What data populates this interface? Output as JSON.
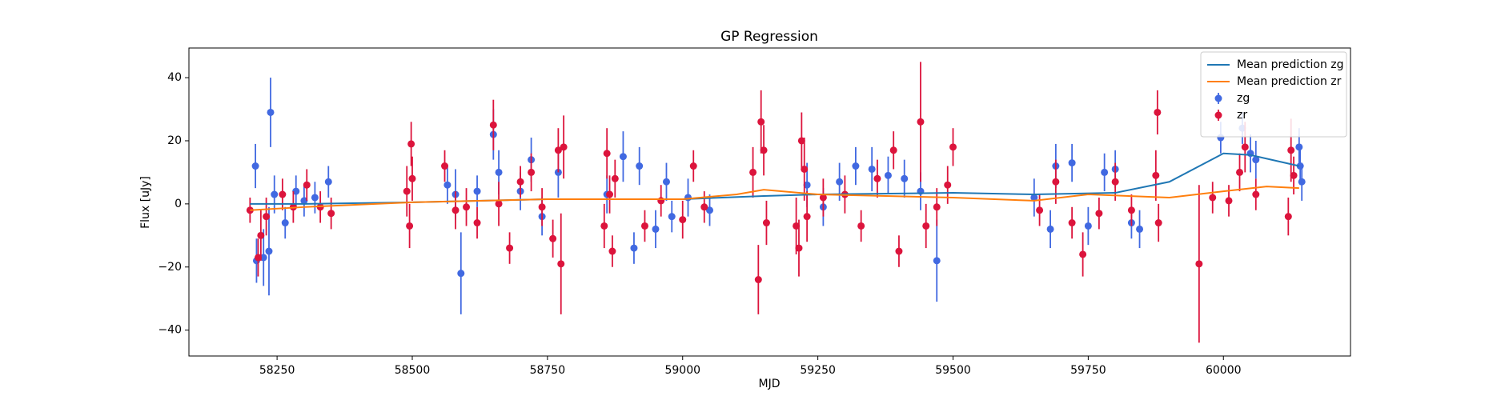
{
  "chart_data": {
    "type": "errorbar",
    "title": "GP Regression",
    "x_label": "MJD",
    "y_label": "Flux [uJy]",
    "xlim": [
      58087,
      60235
    ],
    "ylim": [
      -48.2,
      49.4
    ],
    "xticks": [
      58250,
      58500,
      58750,
      59000,
      59250,
      59500,
      59750,
      60000
    ],
    "yticks": [
      {
        "value": -40,
        "label": "−40"
      },
      {
        "value": -20,
        "label": "−20"
      },
      0,
      20,
      40
    ],
    "legend": "upper right",
    "series": [
      {
        "name": "Mean prediction zg",
        "kind": "line",
        "color": "#1f77b4",
        "x": [
          58200,
          58300,
          58500,
          58750,
          59000,
          59150,
          59250,
          59500,
          59650,
          59800,
          59900,
          60000,
          60050,
          60140
        ],
        "values": [
          0,
          0,
          0.5,
          1.5,
          1.5,
          2.5,
          3,
          3.5,
          3,
          3.5,
          7,
          16,
          15.5,
          12
        ]
      },
      {
        "name": "Mean prediction zr",
        "kind": "line",
        "color": "#ff7f0e",
        "x": [
          58200,
          58300,
          58500,
          58750,
          59000,
          59100,
          59150,
          59250,
          59500,
          59650,
          59750,
          59900,
          60000,
          60080,
          60140
        ],
        "values": [
          -2,
          -1,
          0.5,
          1.5,
          1.5,
          3,
          4.5,
          3,
          2,
          1,
          3,
          2,
          4,
          5.5,
          5
        ]
      },
      {
        "name": "zg",
        "kind": "errorbar",
        "color": "#4169e1",
        "x": [
          58210,
          58212,
          58225,
          58235,
          58238,
          58245,
          58265,
          58285,
          58300,
          58320,
          58345,
          58565,
          58580,
          58590,
          58620,
          58650,
          58660,
          58700,
          58720,
          58740,
          58770,
          58860,
          58890,
          58910,
          58920,
          58950,
          58970,
          58980,
          59010,
          59050,
          59230,
          59260,
          59290,
          59320,
          59350,
          59380,
          59410,
          59440,
          59470,
          59650,
          59680,
          59690,
          59720,
          59750,
          59780,
          59800,
          59830,
          59845,
          59995,
          60035,
          60050,
          60060,
          60140,
          60142,
          60145
        ],
        "values": [
          12,
          -18,
          -17,
          -15,
          29,
          3,
          -6,
          4,
          1,
          2,
          7,
          6,
          3,
          -22,
          4,
          22,
          10,
          4,
          14,
          -4,
          10,
          3,
          15,
          -14,
          12,
          -8,
          7,
          -4,
          2,
          -2,
          6,
          -1,
          7,
          12,
          11,
          9,
          8,
          4,
          -18,
          2,
          -8,
          12,
          13,
          -7,
          10,
          11,
          -6,
          -8,
          21,
          24,
          16,
          14,
          18,
          12,
          7
        ],
        "errors": [
          7,
          7,
          9,
          14,
          11,
          6,
          5,
          5,
          5,
          5,
          5,
          6,
          8,
          13,
          5,
          8,
          7,
          6,
          7,
          6,
          8,
          6,
          8,
          5,
          6,
          6,
          6,
          5,
          6,
          5,
          7,
          6,
          6,
          6,
          7,
          6,
          6,
          6,
          13,
          6,
          6,
          7,
          6,
          6,
          6,
          6,
          5,
          6,
          5,
          5,
          6,
          6,
          6,
          6,
          6
        ]
      },
      {
        "name": "zr",
        "kind": "errorbar",
        "color": "#dc143c",
        "x": [
          58200,
          58215,
          58220,
          58230,
          58260,
          58280,
          58305,
          58330,
          58350,
          58490,
          58495,
          58498,
          58500,
          58560,
          58580,
          58600,
          58620,
          58650,
          58660,
          58680,
          58700,
          58720,
          58740,
          58760,
          58770,
          58775,
          58780,
          58855,
          58860,
          58865,
          58870,
          58875,
          58930,
          58960,
          59000,
          59020,
          59040,
          59130,
          59140,
          59145,
          59150,
          59155,
          59210,
          59215,
          59220,
          59225,
          59230,
          59260,
          59300,
          59330,
          59360,
          59390,
          59400,
          59440,
          59450,
          59470,
          59490,
          59500,
          59660,
          59690,
          59720,
          59740,
          59770,
          59800,
          59830,
          59875,
          59878,
          59880,
          59955,
          59980,
          60010,
          60030,
          60040,
          60060,
          60120,
          60125,
          60130
        ],
        "values": [
          -2,
          -17,
          -10,
          -4,
          3,
          -1,
          6,
          -1,
          -3,
          4,
          -7,
          19,
          8,
          12,
          -2,
          -1,
          -6,
          25,
          0,
          -14,
          7,
          10,
          -1,
          -11,
          17,
          -19,
          18,
          -7,
          16,
          3,
          -15,
          8,
          -7,
          1,
          -5,
          12,
          -1,
          10,
          -24,
          26,
          17,
          -6,
          -7,
          -14,
          20,
          11,
          -4,
          2,
          3,
          -7,
          8,
          17,
          -15,
          26,
          -7,
          -1,
          6,
          18,
          -2,
          7,
          -6,
          -16,
          -3,
          7,
          -2,
          9,
          29,
          -6,
          -19,
          2,
          1,
          10,
          18,
          3,
          -4,
          17,
          9
        ],
        "errors": [
          4,
          6,
          8,
          6,
          5,
          5,
          5,
          5,
          5,
          8,
          7,
          7,
          7,
          5,
          6,
          6,
          5,
          8,
          7,
          5,
          5,
          6,
          6,
          6,
          7,
          16,
          10,
          7,
          8,
          6,
          5,
          6,
          5,
          5,
          6,
          5,
          5,
          8,
          11,
          10,
          8,
          7,
          9,
          9,
          9,
          10,
          8,
          6,
          6,
          5,
          6,
          6,
          5,
          19,
          7,
          6,
          6,
          6,
          5,
          7,
          5,
          7,
          5,
          6,
          5,
          8,
          7,
          6,
          25,
          5,
          5,
          6,
          8,
          5,
          6,
          10,
          6
        ]
      }
    ]
  }
}
